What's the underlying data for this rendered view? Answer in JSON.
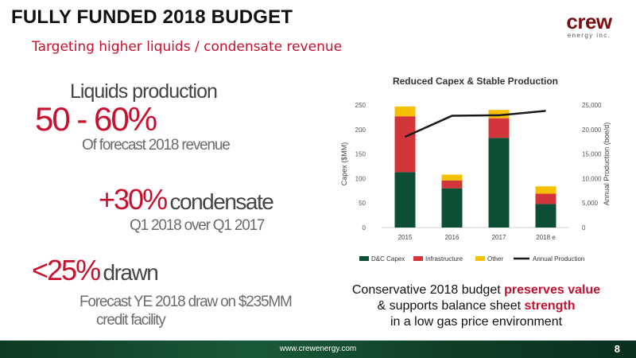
{
  "header": {
    "title": "FULLY FUNDED 2018 BUDGET",
    "subtitle": "Targeting higher liquids / condensate revenue",
    "logo_text": "crew",
    "logo_sub": "energy inc."
  },
  "kpis": {
    "liquids_label": "Liquids production",
    "liquids_value": "50 - 60%",
    "liquids_caption": "Of forecast 2018 revenue",
    "condensate_value": "+30%",
    "condensate_label": "condensate",
    "condensate_caption": "Q1 2018 over Q1 2017",
    "drawn_value": "<25%",
    "drawn_label": "drawn",
    "drawn_caption_1": "Forecast YE 2018 draw on $235MM",
    "drawn_caption_2": "credit facility"
  },
  "note": {
    "line1_a": "Conservative 2018 budget ",
    "line1_b": "preserves value",
    "line2_a": "& supports balance sheet ",
    "line2_b": "strength",
    "line3": "in a low gas price environment"
  },
  "footer": {
    "url": "www.crewenergy.com",
    "page": "8"
  },
  "colors": {
    "dc_capex": "#0d4f35",
    "infrastructure": "#d2363a",
    "other": "#f6c000",
    "production": "#1a1a1a",
    "accent_red": "#c8102e"
  },
  "chart_data": {
    "type": "bar",
    "title": "Reduced Capex & Stable Production",
    "ylabel": "Capex ($MM)",
    "y2label": "Annual Production (boe/d)",
    "categories": [
      "2015",
      "2016",
      "2017",
      "2018 e"
    ],
    "ylim": [
      0,
      250
    ],
    "yticks": [
      "0",
      "50",
      "100",
      "150",
      "200",
      "250"
    ],
    "y2lim": [
      0,
      25000
    ],
    "y2ticks": [
      "0",
      "5,000",
      "10,000",
      "15,000",
      "20,000",
      "25,000"
    ],
    "stacked": true,
    "series": [
      {
        "name": "D&C Capex",
        "values": [
          113,
          80,
          183,
          48
        ]
      },
      {
        "name": "Infrastructure",
        "values": [
          114,
          16,
          40,
          21
        ]
      },
      {
        "name": "Other",
        "values": [
          20,
          12,
          17,
          15
        ]
      }
    ],
    "line_series": {
      "name": "Annual Production",
      "axis": "secondary",
      "values": [
        18500,
        22800,
        22900,
        23800
      ]
    },
    "legend": "bottom",
    "grid": false
  }
}
